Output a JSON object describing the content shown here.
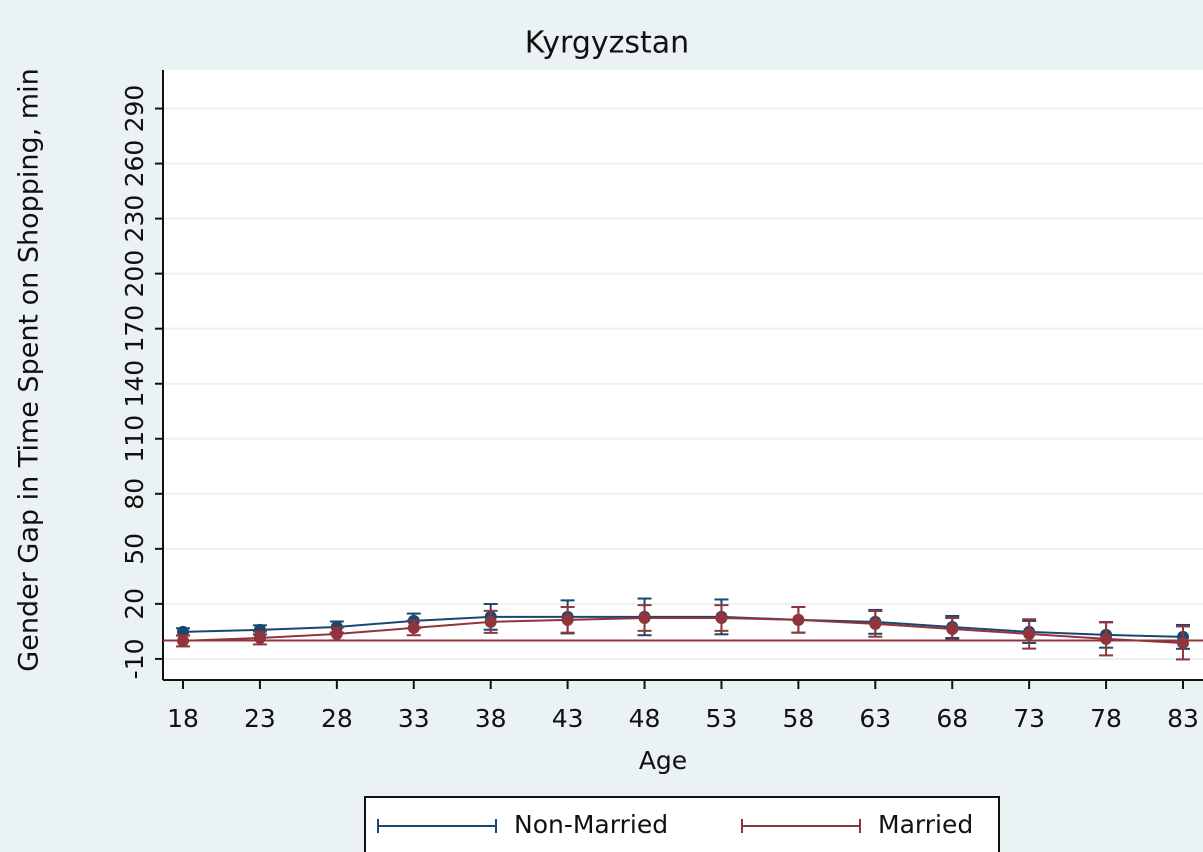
{
  "chart_data": {
    "type": "line",
    "title": "Kyrgyzstan",
    "x_label": "Age",
    "y_label": "Gender Gap in Time Spent on Shopping, min",
    "x": [
      18,
      23,
      28,
      33,
      38,
      43,
      48,
      53,
      58,
      63,
      68,
      73,
      78,
      83
    ],
    "series": [
      {
        "name": "Non-Married",
        "color": "#1a476f",
        "values": [
          4.7,
          5.8,
          7.4,
          10.7,
          12.9,
          12.9,
          12.9,
          12.9,
          11.3,
          10.2,
          7.4,
          4.7,
          3.1,
          2.0
        ],
        "errors": [
          2,
          2.5,
          3,
          4,
          7,
          9,
          10,
          9.5,
          7,
          6.5,
          6,
          6,
          7,
          6.5
        ]
      },
      {
        "name": "Married",
        "color": "#90353b",
        "values": [
          -0.2,
          1.4,
          3.6,
          6.9,
          10.2,
          11.3,
          12.3,
          12.3,
          11.3,
          9.1,
          6.3,
          3.6,
          0.9,
          -1.3
        ],
        "errors": [
          3,
          3.5,
          3.5,
          4,
          6,
          7,
          7,
          7,
          7,
          7,
          6,
          8,
          9,
          9
        ]
      }
    ],
    "yline": 0,
    "yline_color": "#90353b",
    "xlim": [
      16.7,
      84.3
    ],
    "ylim": [
      -21.5,
      311
    ],
    "xticks": [
      18,
      23,
      28,
      33,
      38,
      43,
      48,
      53,
      58,
      63,
      68,
      73,
      78,
      83
    ],
    "yticks": [
      -10,
      20,
      50,
      80,
      110,
      140,
      170,
      200,
      230,
      260,
      290
    ],
    "grid": true,
    "legend": "bottom"
  }
}
